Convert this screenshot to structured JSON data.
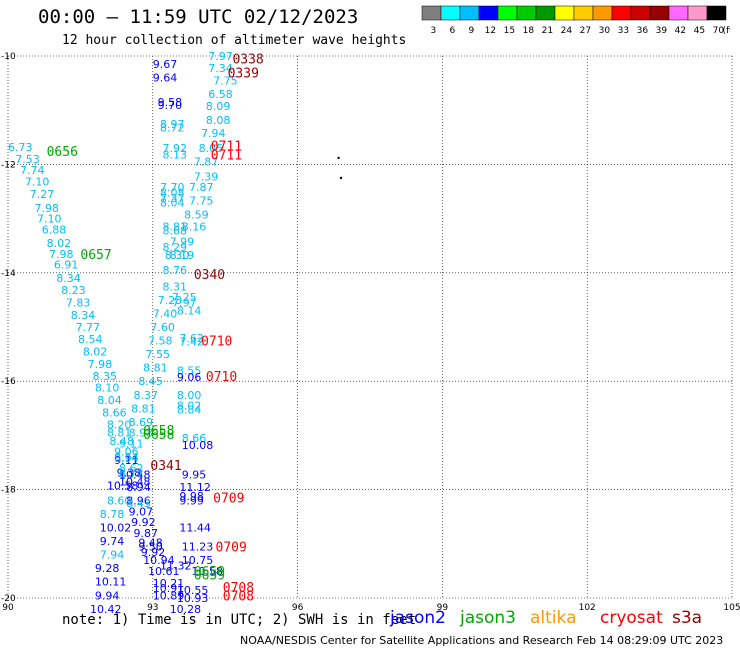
{
  "header": {
    "title": "00:00 – 11:59 UTC 02/12/2023",
    "subtitle": "12 hour collection of altimeter wave heights"
  },
  "color_scale": {
    "unit": "(ft)",
    "bins": [
      {
        "label": "3",
        "color": "#7f7f7f"
      },
      {
        "label": "6",
        "color": "#00ffff"
      },
      {
        "label": "9",
        "color": "#00bfff"
      },
      {
        "label": "12",
        "color": "#0000ff"
      },
      {
        "label": "15",
        "color": "#00ff00"
      },
      {
        "label": "18",
        "color": "#00cc00"
      },
      {
        "label": "21",
        "color": "#009900"
      },
      {
        "label": "24",
        "color": "#ffff00"
      },
      {
        "label": "27",
        "color": "#ffcc00"
      },
      {
        "label": "30",
        "color": "#ff9900"
      },
      {
        "label": "33",
        "color": "#ff0000"
      },
      {
        "label": "36",
        "color": "#cc0000"
      },
      {
        "label": "39",
        "color": "#990000"
      },
      {
        "label": "42",
        "color": "#ff66ff"
      },
      {
        "label": "45",
        "color": "#ff99cc"
      },
      {
        "label": "70",
        "color": "#000000"
      }
    ]
  },
  "legend": {
    "note": "note:  1) Time is in UTC; 2) SWH is in feet",
    "satellites": [
      {
        "name": "jason2",
        "color": "#0000ff"
      },
      {
        "name": "jason3",
        "color": "#00aa00"
      },
      {
        "name": "altika",
        "color": "#ff9900"
      },
      {
        "name": "cryosat",
        "color": "#ff0000"
      },
      {
        "name": "s3a",
        "color": "#990000"
      }
    ]
  },
  "credit": "NOAA/NESDIS Center for Satellite Applications and Research    Feb 14 08:29:09 UTC 2023",
  "chart_data": {
    "type": "scatter",
    "xlim": [
      90,
      105
    ],
    "ylim": [
      -20,
      -10
    ],
    "x_ticks": [
      "90",
      "93",
      "96",
      "99",
      "102",
      "105"
    ],
    "y_ticks": [
      "-10",
      "-12",
      "-14",
      "-16",
      "-18",
      "-20"
    ],
    "grid": true,
    "colors": {
      "c9": "#00bfff",
      "c12": "#0000ff",
      "jason3": "#00aa00",
      "cryosat": "#ff0000",
      "s3a": "#990000",
      "dot": "#000000"
    },
    "points": [
      {
        "x": 94.15,
        "y": -10.0,
        "label": "7.97",
        "c": "c9"
      },
      {
        "x": 93.0,
        "y": -10.15,
        "label": "9.67",
        "c": "c12"
      },
      {
        "x": 94.15,
        "y": -10.22,
        "label": "7.34",
        "c": "c9"
      },
      {
        "x": 93.0,
        "y": -10.4,
        "label": "9.64",
        "c": "c12"
      },
      {
        "x": 94.25,
        "y": -10.45,
        "label": "7.75",
        "c": "c9"
      },
      {
        "x": 94.15,
        "y": -10.7,
        "label": "6.58",
        "c": "c9"
      },
      {
        "x": 93.1,
        "y": -10.85,
        "label": "9.58",
        "c": "c12"
      },
      {
        "x": 93.1,
        "y": -10.9,
        "label": "9.70",
        "c": "c12"
      },
      {
        "x": 94.1,
        "y": -10.92,
        "label": "8.09",
        "c": "c9"
      },
      {
        "x": 94.1,
        "y": -11.18,
        "label": "8.08",
        "c": "c9"
      },
      {
        "x": 93.15,
        "y": -11.25,
        "label": "8.97",
        "c": "c9"
      },
      {
        "x": 93.15,
        "y": -11.32,
        "label": "8.72",
        "c": "c9"
      },
      {
        "x": 94.0,
        "y": -11.42,
        "label": "7.94",
        "c": "c9"
      },
      {
        "x": 93.2,
        "y": -11.7,
        "label": "7.92",
        "c": "c9"
      },
      {
        "x": 93.2,
        "y": -11.82,
        "label": "8.13",
        "c": "c9"
      },
      {
        "x": 93.95,
        "y": -11.7,
        "label": "8.05",
        "c": "c9"
      },
      {
        "x": 93.85,
        "y": -11.95,
        "label": "7.87",
        "c": "c9"
      },
      {
        "x": 93.85,
        "y": -12.22,
        "label": "7.39",
        "c": "c9"
      },
      {
        "x": 93.15,
        "y": -12.42,
        "label": "7.70",
        "c": "c9"
      },
      {
        "x": 93.75,
        "y": -12.42,
        "label": "7.87",
        "c": "c9"
      },
      {
        "x": 93.15,
        "y": -12.52,
        "label": "8.08",
        "c": "c9"
      },
      {
        "x": 93.15,
        "y": -12.62,
        "label": "7.37",
        "c": "c9"
      },
      {
        "x": 93.15,
        "y": -12.7,
        "label": "8.04",
        "c": "c9"
      },
      {
        "x": 93.75,
        "y": -12.67,
        "label": "7.75",
        "c": "c9"
      },
      {
        "x": 93.65,
        "y": -12.92,
        "label": "8.59",
        "c": "c9"
      },
      {
        "x": 93.2,
        "y": -13.15,
        "label": "8.81",
        "c": "c9"
      },
      {
        "x": 93.2,
        "y": -13.22,
        "label": "8.68",
        "c": "c9"
      },
      {
        "x": 93.6,
        "y": -13.15,
        "label": "8.16",
        "c": "c9"
      },
      {
        "x": 93.35,
        "y": -13.42,
        "label": "7.99",
        "c": "c9"
      },
      {
        "x": 93.2,
        "y": -13.52,
        "label": "8.29",
        "c": "c9"
      },
      {
        "x": 93.25,
        "y": -13.67,
        "label": "8.30",
        "c": "c9"
      },
      {
        "x": 93.35,
        "y": -13.67,
        "label": "8.19",
        "c": "c9"
      },
      {
        "x": 93.2,
        "y": -13.95,
        "label": "8.76",
        "c": "c9"
      },
      {
        "x": 93.2,
        "y": -14.25,
        "label": "8.31",
        "c": "c9"
      },
      {
        "x": 93.1,
        "y": -14.5,
        "label": "7.23",
        "c": "c9"
      },
      {
        "x": 93.4,
        "y": -14.45,
        "label": "7.25",
        "c": "c9"
      },
      {
        "x": 93.4,
        "y": -14.55,
        "label": "7.97",
        "c": "c9"
      },
      {
        "x": 93.5,
        "y": -14.7,
        "label": "8.14",
        "c": "c9"
      },
      {
        "x": 93.0,
        "y": -14.75,
        "label": "7.40",
        "c": "c9"
      },
      {
        "x": 92.95,
        "y": -15.0,
        "label": "7.60",
        "c": "c9"
      },
      {
        "x": 93.55,
        "y": -15.2,
        "label": "7.62",
        "c": "c9"
      },
      {
        "x": 93.55,
        "y": -15.27,
        "label": "7.42",
        "c": "c9"
      },
      {
        "x": 92.9,
        "y": -15.25,
        "label": "7.58",
        "c": "c9"
      },
      {
        "x": 92.85,
        "y": -15.5,
        "label": "7.55",
        "c": "c9"
      },
      {
        "x": 92.8,
        "y": -15.75,
        "label": "8.81",
        "c": "c9"
      },
      {
        "x": 93.5,
        "y": -15.8,
        "label": "8.55",
        "c": "c9"
      },
      {
        "x": 93.5,
        "y": -15.92,
        "label": "9.06",
        "c": "c12"
      },
      {
        "x": 92.7,
        "y": -16.0,
        "label": "8.45",
        "c": "c9"
      },
      {
        "x": 92.6,
        "y": -16.25,
        "label": "8.37",
        "c": "c9"
      },
      {
        "x": 93.5,
        "y": -16.25,
        "label": "8.00",
        "c": "c9"
      },
      {
        "x": 92.55,
        "y": -16.5,
        "label": "8.81",
        "c": "c9"
      },
      {
        "x": 93.5,
        "y": -16.45,
        "label": "8.02",
        "c": "c9"
      },
      {
        "x": 93.5,
        "y": -16.52,
        "label": "8.84",
        "c": "c9"
      },
      {
        "x": 92.5,
        "y": -16.75,
        "label": "8.69",
        "c": "c9"
      },
      {
        "x": 92.5,
        "y": -16.95,
        "label": "8.93",
        "c": "c9"
      },
      {
        "x": 93.6,
        "y": -17.05,
        "label": "8.66",
        "c": "c9"
      },
      {
        "x": 93.6,
        "y": -17.18,
        "label": "10.08",
        "c": "c12"
      },
      {
        "x": 92.3,
        "y": -17.15,
        "label": "9.11",
        "c": "c9"
      },
      {
        "x": 92.2,
        "y": -17.4,
        "label": "9.54",
        "c": "c9"
      },
      {
        "x": 92.2,
        "y": -17.45,
        "label": "9.11",
        "c": "c12"
      },
      {
        "x": 92.25,
        "y": -17.68,
        "label": "9.38",
        "c": "c12"
      },
      {
        "x": 92.3,
        "y": -17.72,
        "label": "10.48",
        "c": "c12"
      },
      {
        "x": 92.3,
        "y": -17.85,
        "label": "10.48",
        "c": "c12"
      },
      {
        "x": 93.6,
        "y": -17.72,
        "label": "9.95",
        "c": "c12"
      },
      {
        "x": 92.05,
        "y": -17.92,
        "label": "10.58",
        "c": "c12"
      },
      {
        "x": 92.45,
        "y": -17.95,
        "label": "8.94",
        "c": "c12"
      },
      {
        "x": 93.55,
        "y": -17.95,
        "label": "11.12",
        "c": "c12"
      },
      {
        "x": 93.55,
        "y": -18.12,
        "label": "9.98",
        "c": "c12"
      },
      {
        "x": 93.55,
        "y": -18.2,
        "label": "9.99",
        "c": "c12"
      },
      {
        "x": 92.05,
        "y": -18.2,
        "label": "8.60",
        "c": "c9"
      },
      {
        "x": 92.45,
        "y": -18.2,
        "label": "8.96",
        "c": "c12"
      },
      {
        "x": 92.45,
        "y": -18.25,
        "label": "8.43",
        "c": "c9"
      },
      {
        "x": 92.5,
        "y": -18.4,
        "label": "9.07",
        "c": "c12"
      },
      {
        "x": 91.9,
        "y": -18.45,
        "label": "8.78",
        "c": "c9"
      },
      {
        "x": 92.55,
        "y": -18.6,
        "label": "9.92",
        "c": "c12"
      },
      {
        "x": 93.55,
        "y": -18.7,
        "label": "11.44",
        "c": "c12"
      },
      {
        "x": 91.9,
        "y": -18.7,
        "label": "10.02",
        "c": "c12"
      },
      {
        "x": 92.6,
        "y": -18.8,
        "label": "9.87",
        "c": "c12"
      },
      {
        "x": 91.9,
        "y": -18.95,
        "label": "9.74",
        "c": "c12"
      },
      {
        "x": 92.7,
        "y": -18.98,
        "label": "9.48",
        "c": "c12"
      },
      {
        "x": 92.7,
        "y": -19.05,
        "label": "9.50",
        "c": "c12"
      },
      {
        "x": 93.6,
        "y": -19.05,
        "label": "11.23",
        "c": "c12"
      },
      {
        "x": 92.75,
        "y": -19.15,
        "label": "9.92",
        "c": "c12"
      },
      {
        "x": 91.9,
        "y": -19.2,
        "label": "7.94",
        "c": "c9"
      },
      {
        "x": 92.8,
        "y": -19.3,
        "label": "10.94",
        "c": "c12"
      },
      {
        "x": 93.6,
        "y": -19.3,
        "label": "10.75",
        "c": "c12"
      },
      {
        "x": 93.15,
        "y": -19.4,
        "label": "11.32",
        "c": "c12"
      },
      {
        "x": 91.8,
        "y": -19.45,
        "label": "9.28",
        "c": "c12"
      },
      {
        "x": 92.9,
        "y": -19.5,
        "label": "10.61",
        "c": "c12"
      },
      {
        "x": 93.8,
        "y": -19.5,
        "label": "10.58",
        "c": "c12"
      },
      {
        "x": 91.8,
        "y": -19.7,
        "label": "10.11",
        "c": "c12"
      },
      {
        "x": 93.0,
        "y": -19.72,
        "label": "10.21",
        "c": "c12"
      },
      {
        "x": 93.0,
        "y": -19.82,
        "label": "10.91",
        "c": "c12"
      },
      {
        "x": 93.5,
        "y": -19.85,
        "label": "10.55",
        "c": "c12"
      },
      {
        "x": 91.8,
        "y": -19.95,
        "label": "9.94",
        "c": "c12"
      },
      {
        "x": 93.0,
        "y": -19.95,
        "label": "10.89",
        "c": "c12"
      },
      {
        "x": 93.5,
        "y": -20.0,
        "label": "10.93",
        "c": "c12"
      },
      {
        "x": 91.7,
        "y": -20.2,
        "label": "10.42",
        "c": "c12"
      },
      {
        "x": 93.35,
        "y": -20.2,
        "label": "10.28",
        "c": "c12"
      },
      {
        "x": 90.0,
        "y": -11.68,
        "label": "6.73",
        "c": "c9"
      },
      {
        "x": 90.15,
        "y": -11.9,
        "label": "7.53",
        "c": "c9"
      },
      {
        "x": 90.25,
        "y": -12.1,
        "label": "7.74",
        "c": "c9"
      },
      {
        "x": 90.35,
        "y": -12.32,
        "label": "7.10",
        "c": "c9"
      },
      {
        "x": 90.45,
        "y": -12.55,
        "label": "7.27",
        "c": "c9"
      },
      {
        "x": 90.55,
        "y": -12.8,
        "label": "7.98",
        "c": "c9"
      },
      {
        "x": 90.6,
        "y": -13.0,
        "label": "7.10",
        "c": "c9"
      },
      {
        "x": 90.7,
        "y": -13.2,
        "label": "6.88",
        "c": "c9"
      },
      {
        "x": 90.8,
        "y": -13.45,
        "label": "8.02",
        "c": "c9"
      },
      {
        "x": 90.85,
        "y": -13.65,
        "label": "7.98",
        "c": "c9"
      },
      {
        "x": 90.95,
        "y": -13.85,
        "label": "6.91",
        "c": "c9"
      },
      {
        "x": 91.0,
        "y": -14.1,
        "label": "8.34",
        "c": "c9"
      },
      {
        "x": 91.1,
        "y": -14.32,
        "label": "8.23",
        "c": "c9"
      },
      {
        "x": 91.2,
        "y": -14.55,
        "label": "7.83",
        "c": "c9"
      },
      {
        "x": 91.3,
        "y": -14.78,
        "label": "8.34",
        "c": "c9"
      },
      {
        "x": 91.4,
        "y": -15.0,
        "label": "7.77",
        "c": "c9"
      },
      {
        "x": 91.45,
        "y": -15.22,
        "label": "8.54",
        "c": "c9"
      },
      {
        "x": 91.55,
        "y": -15.45,
        "label": "8.02",
        "c": "c9"
      },
      {
        "x": 91.65,
        "y": -15.68,
        "label": "7.98",
        "c": "c9"
      },
      {
        "x": 91.75,
        "y": -15.9,
        "label": "8.35",
        "c": "c9"
      },
      {
        "x": 91.8,
        "y": -16.12,
        "label": "8.10",
        "c": "c9"
      },
      {
        "x": 91.85,
        "y": -16.35,
        "label": "8.04",
        "c": "c9"
      },
      {
        "x": 91.95,
        "y": -16.58,
        "label": "8.66",
        "c": "c9"
      },
      {
        "x": 92.05,
        "y": -16.8,
        "label": "8.20",
        "c": "c9"
      },
      {
        "x": 92.05,
        "y": -16.95,
        "label": "8.81",
        "c": "c9"
      },
      {
        "x": 92.1,
        "y": -17.1,
        "label": "8.48",
        "c": "c9"
      },
      {
        "x": 92.2,
        "y": -17.3,
        "label": "9.06",
        "c": "c9"
      },
      {
        "x": 92.2,
        "y": -17.42,
        "label": "8.94",
        "c": "c9"
      },
      {
        "x": 92.3,
        "y": -17.6,
        "label": "8.62",
        "c": "c9"
      },
      {
        "x": 92.3,
        "y": -17.7,
        "label": "8.77",
        "c": "c9"
      }
    ],
    "track_labels": [
      {
        "x": 94.65,
        "y": -10.05,
        "label": "0338",
        "c": "s3a"
      },
      {
        "x": 94.55,
        "y": -10.3,
        "label": "0339",
        "c": "s3a"
      },
      {
        "x": 90.8,
        "y": -11.75,
        "label": "0656",
        "c": "jason3"
      },
      {
        "x": 94.2,
        "y": -11.65,
        "label": "0711",
        "c": "cryosat"
      },
      {
        "x": 94.2,
        "y": -11.82,
        "label": "0711",
        "c": "cryosat"
      },
      {
        "x": 91.5,
        "y": -13.65,
        "label": "0657",
        "c": "jason3"
      },
      {
        "x": 93.85,
        "y": -14.02,
        "label": "0340",
        "c": "s3a"
      },
      {
        "x": 94.0,
        "y": -15.25,
        "label": "0710",
        "c": "cryosat"
      },
      {
        "x": 94.1,
        "y": -15.9,
        "label": "0710",
        "c": "cryosat"
      },
      {
        "x": 92.8,
        "y": -16.9,
        "label": "0658",
        "c": "jason3"
      },
      {
        "x": 92.8,
        "y": -16.97,
        "label": "0658",
        "c": "jason3"
      },
      {
        "x": 92.95,
        "y": -17.55,
        "label": "0341",
        "c": "s3a"
      },
      {
        "x": 94.25,
        "y": -18.15,
        "label": "0709",
        "c": "cryosat"
      },
      {
        "x": 94.3,
        "y": -19.05,
        "label": "0709",
        "c": "cryosat"
      },
      {
        "x": 93.85,
        "y": -19.5,
        "label": "0659",
        "c": "jason3"
      },
      {
        "x": 93.85,
        "y": -19.57,
        "label": "0659",
        "c": "jason3"
      },
      {
        "x": 94.45,
        "y": -19.8,
        "label": "0708",
        "c": "cryosat"
      },
      {
        "x": 94.45,
        "y": -19.95,
        "label": "0708",
        "c": "cryosat"
      }
    ],
    "dots": [
      {
        "x": 96.85,
        "y": -11.88
      },
      {
        "x": 96.9,
        "y": -12.25
      }
    ]
  }
}
